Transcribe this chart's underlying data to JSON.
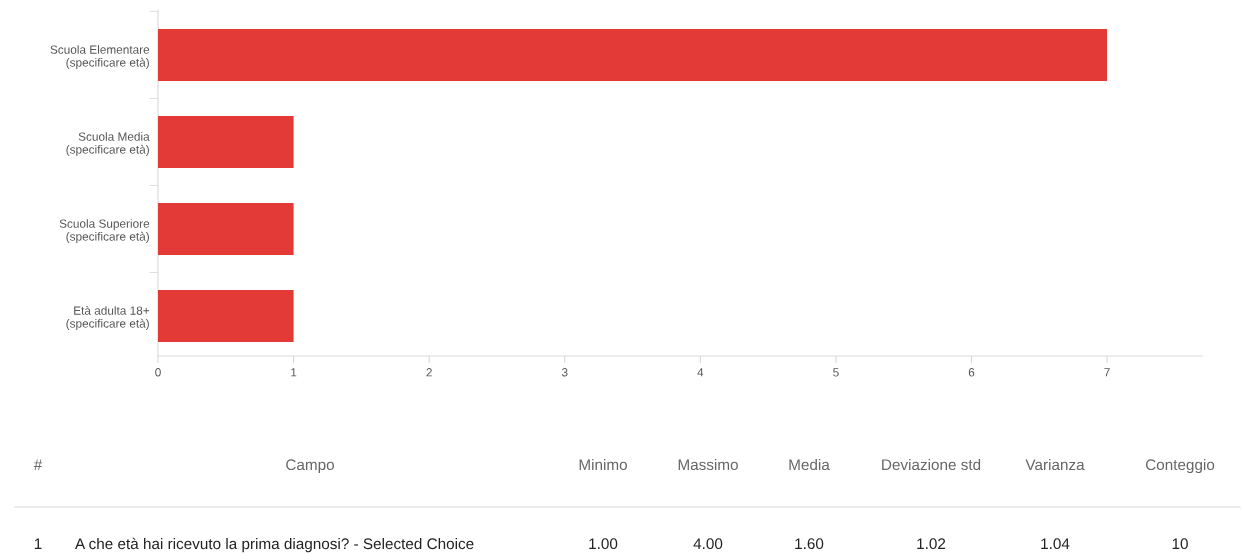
{
  "chart_data": {
    "type": "bar",
    "orientation": "horizontal",
    "categories": [
      "Scuola Elementare\n(specificare età)",
      "Scuola Media\n(specificare età)",
      "Scuola Superiore\n(specificare età)",
      "Età adulta 18+\n(specificare età)"
    ],
    "values": [
      7,
      1,
      1,
      1
    ],
    "color": "#e43a37",
    "xlim": [
      0,
      7.7
    ],
    "xticks": [
      0,
      1,
      2,
      3,
      4,
      5,
      6,
      7
    ],
    "grid": false,
    "legend": false,
    "annotations": [
      "#",
      "Campo",
      "Minimo",
      "Massimo",
      "Media",
      "Deviazione std",
      "Varianza",
      "Conteggio",
      "1",
      "A che età hai ricevuto la prima diagnosi? - Selected Choice",
      "1.00",
      "4.00",
      "1.60",
      "1.02",
      "1.04",
      "10"
    ]
  }
}
